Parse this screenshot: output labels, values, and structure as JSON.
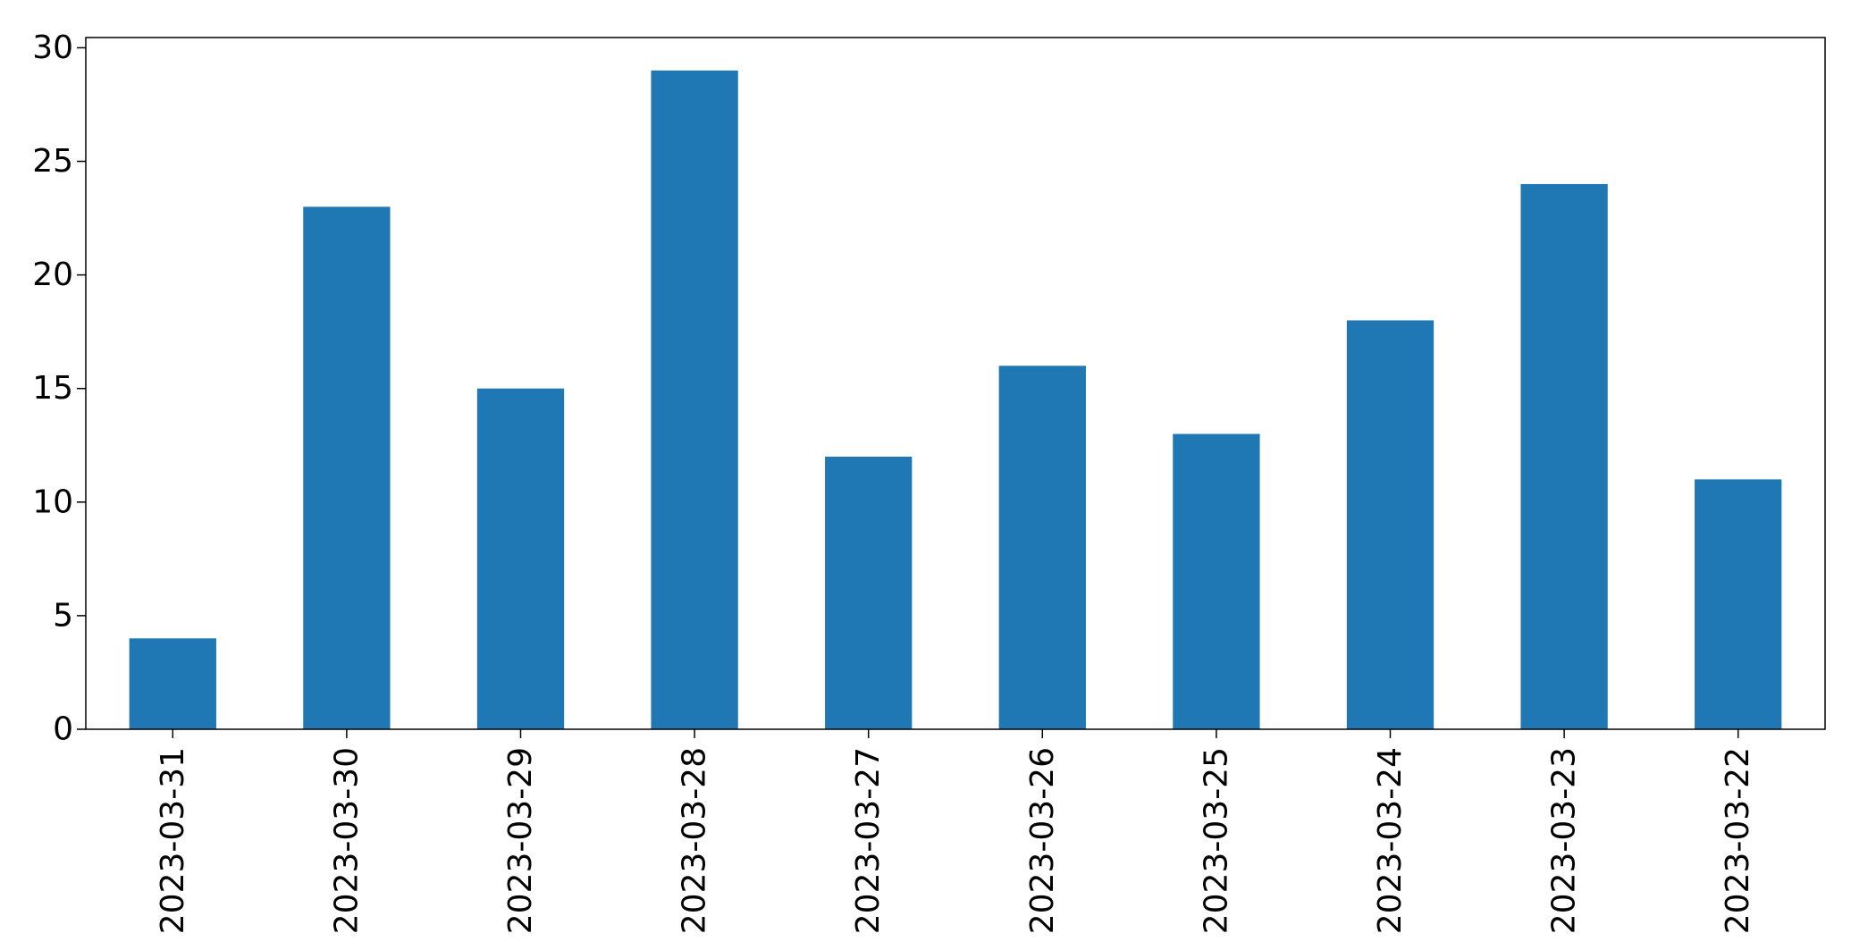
{
  "chart_data": {
    "type": "bar",
    "categories": [
      "2023-03-31",
      "2023-03-30",
      "2023-03-29",
      "2023-03-28",
      "2023-03-27",
      "2023-03-26",
      "2023-03-25",
      "2023-03-24",
      "2023-03-23",
      "2023-03-22"
    ],
    "values": [
      4,
      23,
      15,
      29,
      12,
      16,
      13,
      18,
      24,
      11
    ],
    "yticks": [
      0,
      5,
      10,
      15,
      20,
      25,
      30
    ],
    "ylim": [
      0,
      30.45
    ],
    "bar_color": "#1f77b4",
    "grid": false,
    "legend": "none",
    "xlabel": "",
    "ylabel": "",
    "title": ""
  }
}
